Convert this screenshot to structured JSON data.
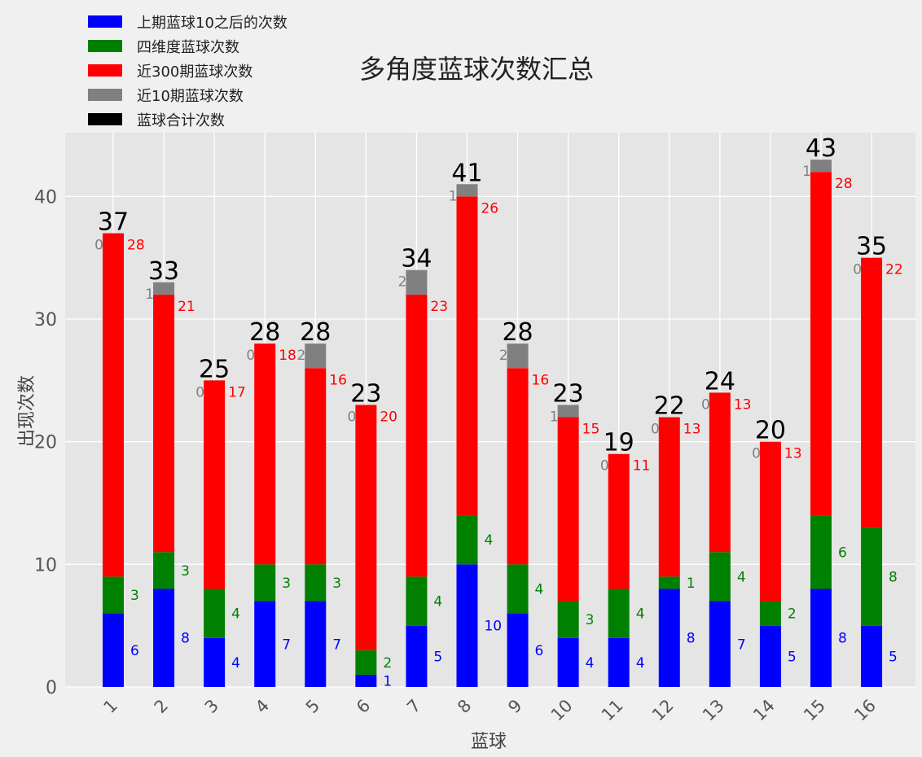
{
  "chart_data": {
    "type": "bar",
    "stacked": true,
    "title": "多角度蓝球次数汇总",
    "xlabel": "蓝球",
    "ylabel": "出现次数",
    "ylim": [
      0,
      45.2
    ],
    "yticks": [
      0,
      10,
      20,
      30,
      40
    ],
    "grid": true,
    "legend_position": "top-left",
    "categories": [
      "1",
      "2",
      "3",
      "4",
      "5",
      "6",
      "7",
      "8",
      "9",
      "10",
      "11",
      "12",
      "13",
      "14",
      "15",
      "16"
    ],
    "series": [
      {
        "name": "上期蓝球10之后的次数",
        "color": "#0000ff",
        "values": [
          6,
          8,
          4,
          7,
          7,
          1,
          5,
          10,
          6,
          4,
          4,
          8,
          7,
          5,
          8,
          5
        ]
      },
      {
        "name": "四维度蓝球次数",
        "color": "#008000",
        "values": [
          3,
          3,
          4,
          3,
          3,
          2,
          4,
          4,
          4,
          3,
          4,
          1,
          4,
          2,
          6,
          8
        ]
      },
      {
        "name": "近300期蓝球次数",
        "color": "#ff0000",
        "values": [
          28,
          21,
          17,
          18,
          16,
          20,
          23,
          26,
          16,
          15,
          11,
          13,
          13,
          13,
          28,
          22
        ]
      },
      {
        "name": "近10期蓝球次数",
        "color": "#808080",
        "values": [
          0,
          1,
          0,
          0,
          2,
          0,
          2,
          1,
          2,
          1,
          0,
          0,
          0,
          0,
          1,
          0
        ]
      }
    ],
    "totals_series": {
      "name": "蓝球合计次数",
      "color": "#000000",
      "values": [
        37,
        33,
        25,
        28,
        28,
        23,
        34,
        41,
        28,
        23,
        19,
        22,
        24,
        20,
        43,
        35
      ]
    }
  }
}
